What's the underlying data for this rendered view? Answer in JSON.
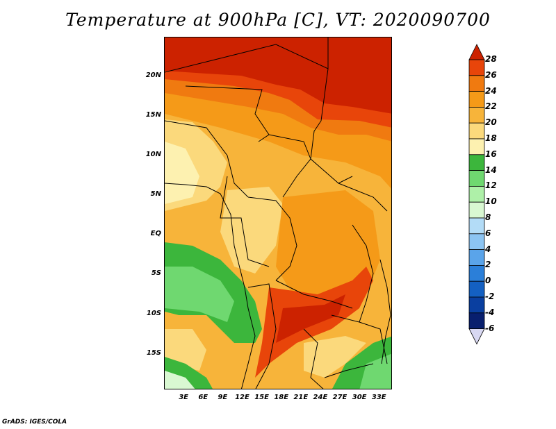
{
  "title": "Temperature at 900hPa [C], VT: 2020090700",
  "credit": "GrADS: IGES/COLA",
  "map": {
    "lat_labels": [
      "20N",
      "15N",
      "10N",
      "5N",
      "EQ",
      "5S",
      "10S",
      "15S"
    ],
    "lat_values": [
      20,
      15,
      10,
      5,
      0,
      -5,
      -10,
      -15
    ],
    "lon_labels": [
      "3E",
      "6E",
      "9E",
      "12E",
      "15E",
      "18E",
      "21E",
      "24E",
      "27E",
      "30E",
      "33E"
    ],
    "lon_values": [
      3,
      6,
      9,
      12,
      15,
      18,
      21,
      24,
      27,
      30,
      33
    ],
    "lon_range": [
      0,
      35
    ],
    "lat_range": [
      -19.5,
      25
    ]
  },
  "colorbar": {
    "levels": [
      "28",
      "26",
      "24",
      "22",
      "20",
      "18",
      "16",
      "14",
      "12",
      "10",
      "8",
      "6",
      "4",
      "2",
      "0",
      "-2",
      "-4",
      "-6"
    ],
    "colors": [
      "#cc2200",
      "#e8450a",
      "#f07a10",
      "#f59a18",
      "#f7b43a",
      "#fbd97c",
      "#fdf1b0",
      "#3cb63c",
      "#6fd870",
      "#aef0a8",
      "#d9f8d2",
      "#b3dcf7",
      "#8cc4f2",
      "#5aa4ea",
      "#2b7fd9",
      "#1460c2",
      "#0a3fa0",
      "#081f6e",
      "#061060"
    ]
  }
}
